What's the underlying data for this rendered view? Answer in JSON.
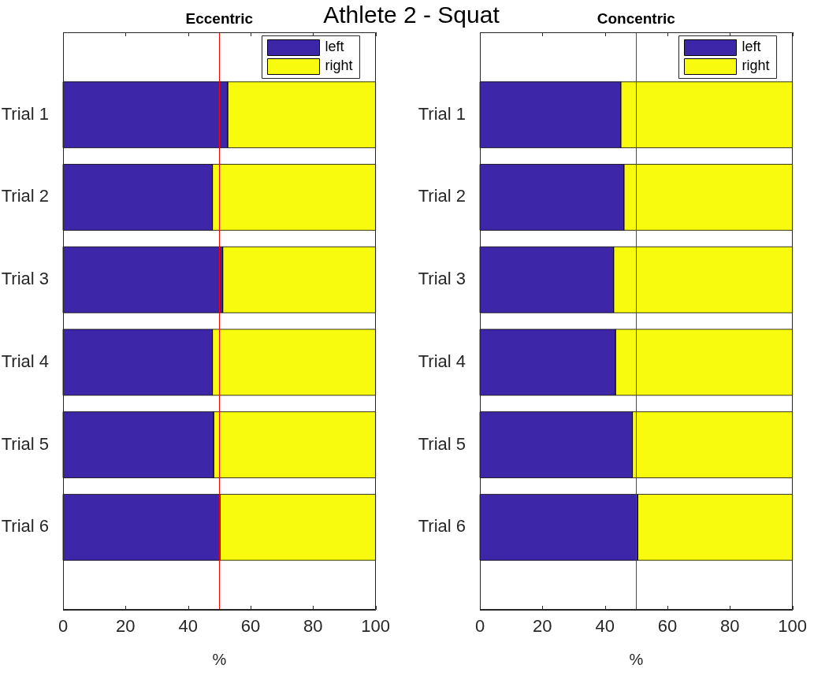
{
  "chart_data": [
    {
      "type": "bar",
      "title": "Eccentric",
      "xlabel": "%",
      "categories": [
        "Trial 1",
        "Trial 2",
        "Trial 3",
        "Trial 4",
        "Trial 5",
        "Trial 6"
      ],
      "orientation": "horizontal",
      "stacked": true,
      "series": [
        {
          "name": "left",
          "color": "#3e26a8",
          "values": [
            52.7,
            47.8,
            51.1,
            47.8,
            48.2,
            50.2
          ]
        },
        {
          "name": "right",
          "color": "#f9fb0e",
          "values": [
            47.3,
            52.2,
            48.9,
            52.2,
            51.8,
            49.8
          ]
        }
      ],
      "xlim": [
        0,
        100
      ],
      "xticks": [
        0,
        20,
        40,
        60,
        80,
        100
      ],
      "ref_lines": [
        {
          "axis": "x",
          "value": 50,
          "color": "#ff0000"
        }
      ],
      "legend": "top right",
      "annotations": [
        "Athlete 2 - Squat"
      ]
    },
    {
      "type": "bar",
      "title": "Concentric",
      "xlabel": "%",
      "categories": [
        "Trial 1",
        "Trial 2",
        "Trial 3",
        "Trial 4",
        "Trial 5",
        "Trial 6"
      ],
      "orientation": "horizontal",
      "stacked": true,
      "series": [
        {
          "name": "left",
          "color": "#3e26a8",
          "values": [
            45.1,
            46.1,
            42.8,
            43.4,
            48.8,
            50.5
          ]
        },
        {
          "name": "right",
          "color": "#f9fb0e",
          "values": [
            54.9,
            53.9,
            57.2,
            56.6,
            51.2,
            49.5
          ]
        }
      ],
      "xlim": [
        0,
        100
      ],
      "xticks": [
        0,
        20,
        40,
        60,
        80,
        100
      ],
      "ref_lines": [
        {
          "axis": "x",
          "value": 50,
          "color": "#ff0000"
        }
      ],
      "legend": "top right"
    }
  ]
}
